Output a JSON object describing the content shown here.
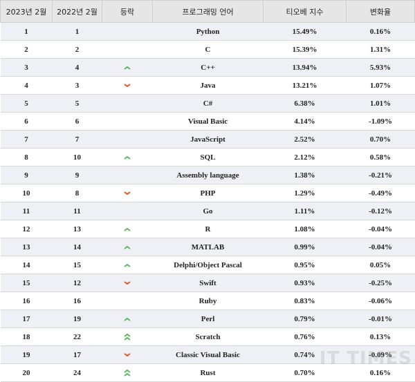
{
  "header": [
    "2023년 2월",
    "2022년 2월",
    "등락",
    "프로그래밍 언어",
    "티오베 지수",
    "변화율"
  ],
  "rows": [
    {
      "rank_2023": "1",
      "rank_2022": "1",
      "language": "Python",
      "rating": "15.49%",
      "change": "0.16%"
    },
    {
      "rank_2023": "2",
      "rank_2022": "2",
      "language": "C",
      "rating": "15.39%",
      "change": "1.31%"
    },
    {
      "rank_2023": "3",
      "rank_2022": "4",
      "trend": "up",
      "language": "C++",
      "rating": "13.94%",
      "change": "5.93%"
    },
    {
      "rank_2023": "4",
      "rank_2022": "3",
      "trend": "down",
      "language": "Java",
      "rating": "13.21%",
      "change": "1.07%"
    },
    {
      "rank_2023": "5",
      "rank_2022": "5",
      "language": "C#",
      "rating": "6.38%",
      "change": "1.01%"
    },
    {
      "rank_2023": "6",
      "rank_2022": "6",
      "language": "Visual Basic",
      "rating": "4.14%",
      "change": "-1.09%"
    },
    {
      "rank_2023": "7",
      "rank_2022": "7",
      "language": "JavaScript",
      "rating": "2.52%",
      "change": "0.70%"
    },
    {
      "rank_2023": "8",
      "rank_2022": "10",
      "trend": "up",
      "language": "SQL",
      "rating": "2.12%",
      "change": "0.58%"
    },
    {
      "rank_2023": "9",
      "rank_2022": "9",
      "language": "Assembly language",
      "rating": "1.38%",
      "change": "-0.21%"
    },
    {
      "rank_2023": "10",
      "rank_2022": "8",
      "trend": "down",
      "language": "PHP",
      "rating": "1.29%",
      "change": "-0.49%"
    },
    {
      "rank_2023": "11",
      "rank_2022": "11",
      "language": "Go",
      "rating": "1.11%",
      "change": "-0.12%"
    },
    {
      "rank_2023": "12",
      "rank_2022": "13",
      "trend": "up",
      "language": "R",
      "rating": "1.08%",
      "change": "-0.04%"
    },
    {
      "rank_2023": "13",
      "rank_2022": "14",
      "trend": "up",
      "language": "MATLAB",
      "rating": "0.99%",
      "change": "-0.04%"
    },
    {
      "rank_2023": "14",
      "rank_2022": "15",
      "trend": "up",
      "language": "Delphi/Object Pascal",
      "rating": "0.95%",
      "change": "0.05%"
    },
    {
      "rank_2023": "15",
      "rank_2022": "12",
      "trend": "down",
      "language": "Swift",
      "rating": "0.93%",
      "change": "-0.25%"
    },
    {
      "rank_2023": "16",
      "rank_2022": "16",
      "language": "Ruby",
      "rating": "0.83%",
      "change": "-0.06%"
    },
    {
      "rank_2023": "17",
      "rank_2022": "19",
      "trend": "up",
      "language": "Perl",
      "rating": "0.79%",
      "change": "-0.01%"
    },
    {
      "rank_2023": "18",
      "rank_2022": "22",
      "trend": "up2",
      "language": "Scratch",
      "rating": "0.76%",
      "change": "0.13%"
    },
    {
      "rank_2023": "19",
      "rank_2022": "17",
      "trend": "down",
      "language": "Classic Visual Basic",
      "rating": "0.74%",
      "change": "-0.09%"
    },
    {
      "rank_2023": "20",
      "rank_2022": "24",
      "trend": "up2",
      "language": "Rust",
      "rating": "0.70%",
      "change": "0.16%"
    }
  ],
  "watermark": "IT TIMES"
}
